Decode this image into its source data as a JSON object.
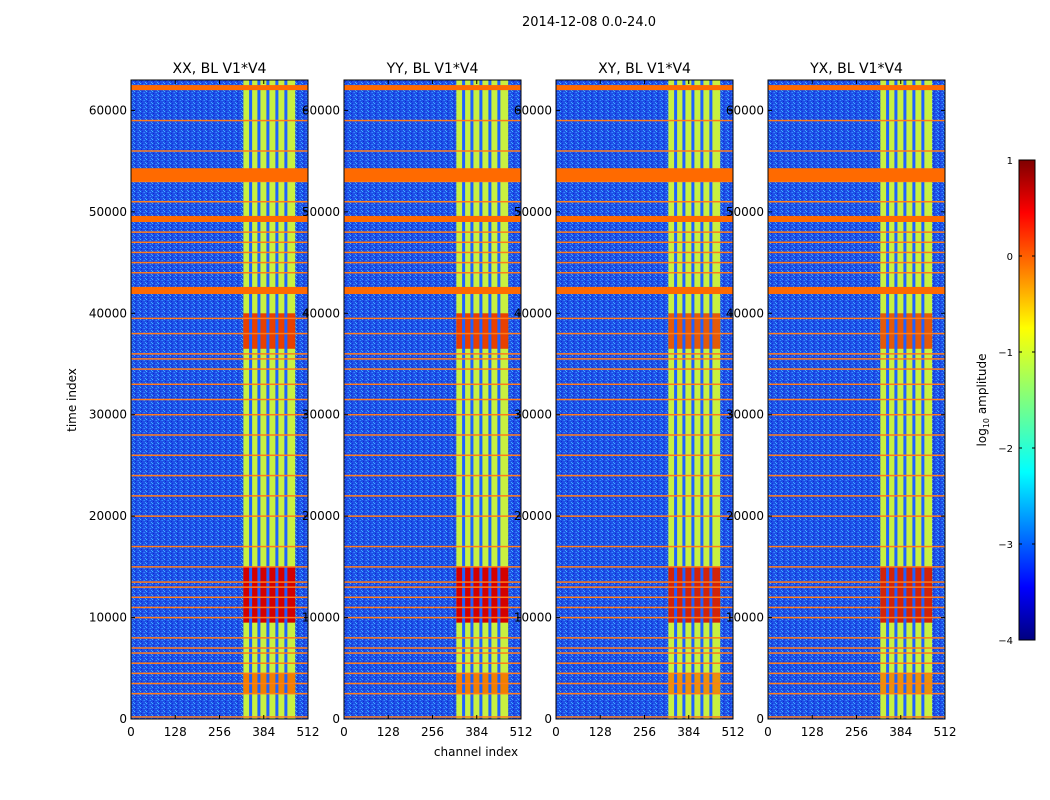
{
  "chart_data": {
    "type": "heatmap",
    "suptitle": "2014-12-08 0.0-24.0",
    "xlabel": "channel index",
    "ylabel": "time index",
    "xlim": [
      0,
      512
    ],
    "ylim": [
      0,
      63000
    ],
    "x_ticks": [
      0,
      128,
      256,
      384,
      512
    ],
    "y_ticks": [
      0,
      10000,
      20000,
      30000,
      40000,
      50000,
      60000
    ],
    "colorbar": {
      "label": "log10 amplitude",
      "range": [
        -4,
        1
      ],
      "ticks": [
        1,
        0,
        -1,
        -2,
        -3,
        -4
      ],
      "tick_labels": [
        "1",
        "0",
        "−1",
        "−2",
        "−3",
        "−4"
      ],
      "colormap": "jet"
    },
    "panels": [
      {
        "title": "XX, BL V1*V4",
        "polarization": "XX",
        "baseline": "V1*V4"
      },
      {
        "title": "YY, BL V1*V4",
        "polarization": "YY",
        "baseline": "V1*V4"
      },
      {
        "title": "XY, BL V1*V4",
        "polarization": "XY",
        "baseline": "V1*V4"
      },
      {
        "title": "YX, BL V1*V4",
        "polarization": "YX",
        "baseline": "V1*V4"
      }
    ],
    "signal_band_channels": [
      325,
      475
    ],
    "band_gap_channels": [
      346,
      370,
      396,
      422,
      448
    ],
    "flagged_time_rows": [
      200,
      2500,
      3500,
      4500,
      5500,
      6500,
      7000,
      8000,
      10000,
      11000,
      12000,
      13000,
      13500,
      15000,
      17000,
      20000,
      22000,
      24000,
      26000,
      28000,
      30000,
      31500,
      33000,
      34500,
      35500,
      36000,
      38000,
      39500,
      42000,
      42400,
      44000,
      45000,
      46000,
      47000,
      48000,
      49300,
      51000,
      53000,
      54000,
      56000,
      59000,
      62200
    ],
    "flagged_time_blocks": [
      [
        53000,
        54300
      ],
      [
        41900,
        42600
      ],
      [
        49000,
        49600
      ],
      [
        62000,
        62500
      ]
    ]
  }
}
